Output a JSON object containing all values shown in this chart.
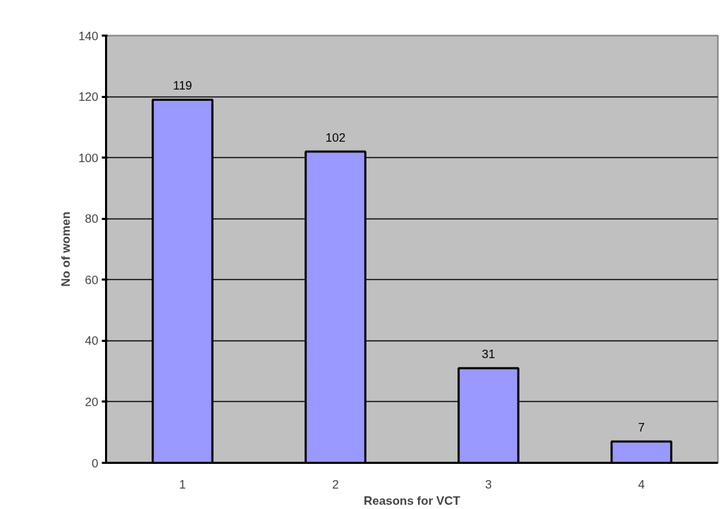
{
  "chart_data": {
    "type": "bar",
    "xlabel": "Reasons for VCT",
    "ylabel": "No of women",
    "categories": [
      "1",
      "2",
      "3",
      "4"
    ],
    "values": [
      119,
      102,
      31,
      7
    ],
    "color": "#9999ff",
    "ylim": [
      0,
      140
    ],
    "yticks": [
      0,
      20,
      40,
      60,
      80,
      100,
      120,
      140
    ],
    "grid": "y",
    "data_labels": true
  }
}
